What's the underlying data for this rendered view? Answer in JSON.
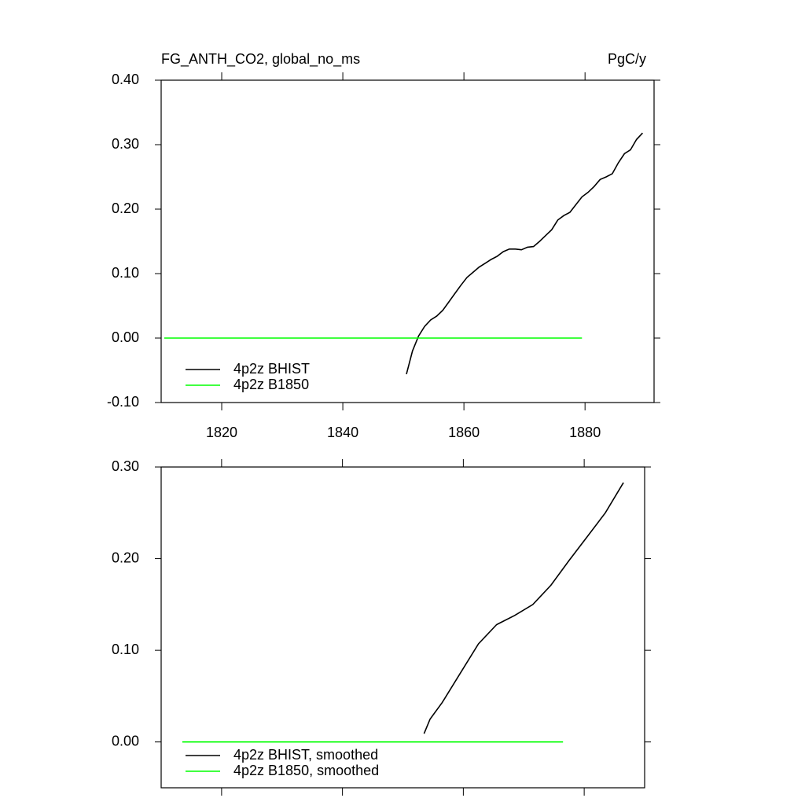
{
  "chart_data": [
    {
      "type": "line",
      "title": "FG_ANTH_CO2, global_no_ms",
      "units": "PgC/y",
      "xlim": [
        1810,
        1891.4
      ],
      "xticks": [
        1820,
        1840,
        1860,
        1880
      ],
      "show_xtick_labels": true,
      "ylim": [
        -0.1,
        0.4
      ],
      "yticks": [
        {
          "value": -0.1,
          "label": "-0.10"
        },
        {
          "value": 0,
          "label": "0.00"
        },
        {
          "value": 0.1,
          "label": "0.10"
        },
        {
          "value": 0.2,
          "label": "0.20"
        },
        {
          "value": 0.3,
          "label": "0.30"
        },
        {
          "value": 0.4,
          "label": "0.40"
        }
      ],
      "series": [
        {
          "name": "4p2z BHIST",
          "color": "#000000",
          "x": [
            1850.5,
            1851.5,
            1852.5,
            1853.5,
            1854.5,
            1855.5,
            1856.5,
            1857.5,
            1858.5,
            1859.5,
            1860.5,
            1861.5,
            1862.5,
            1863.5,
            1864.5,
            1865.5,
            1866.5,
            1867.5,
            1868.5,
            1869.5,
            1870.5,
            1871.5,
            1872.5,
            1873.5,
            1874.5,
            1875.5,
            1876.5,
            1877.5,
            1878.5,
            1879.5,
            1880.5,
            1881.5,
            1882.5,
            1883.5,
            1884.5,
            1885.5,
            1886.5,
            1887.5,
            1888.5,
            1889.5
          ],
          "values": [
            -0.056,
            -0.02,
            0.003,
            0.018,
            0.028,
            0.034,
            0.043,
            0.056,
            0.069,
            0.082,
            0.094,
            0.102,
            0.11,
            0.116,
            0.122,
            0.127,
            0.134,
            0.138,
            0.138,
            0.137,
            0.141,
            0.142,
            0.15,
            0.159,
            0.168,
            0.183,
            0.19,
            0.195,
            0.207,
            0.219,
            0.226,
            0.235,
            0.246,
            0.25,
            0.255,
            0.272,
            0.286,
            0.292,
            0.308,
            0.318
          ]
        },
        {
          "name": "4p2z B1850",
          "color": "#00ff00",
          "x": [
            1810.5,
            1879.5
          ],
          "values": [
            0,
            0
          ]
        }
      ]
    },
    {
      "type": "line",
      "xlim": [
        1810,
        1890
      ],
      "xticks": [
        1820,
        1840,
        1860,
        1880
      ],
      "show_xtick_labels": false,
      "ylim": [
        -0.05,
        0.3
      ],
      "yticks": [
        {
          "value": 0,
          "label": "0.00"
        },
        {
          "value": 0.1,
          "label": "0.10"
        },
        {
          "value": 0.2,
          "label": "0.20"
        },
        {
          "value": 0.3,
          "label": "0.30"
        }
      ],
      "series": [
        {
          "name": "4p2z BHIST, smoothed",
          "color": "#000000",
          "x": [
            1853.5,
            1854.5,
            1856.5,
            1859.5,
            1862.5,
            1865.5,
            1868.5,
            1871.5,
            1874.5,
            1877.5,
            1880.5,
            1883.5,
            1886.5
          ],
          "values": [
            0.009,
            0.025,
            0.043,
            0.075,
            0.107,
            0.128,
            0.138,
            0.15,
            0.171,
            0.198,
            0.224,
            0.25,
            0.283
          ]
        },
        {
          "name": "4p2z B1850, smoothed",
          "color": "#00ff00",
          "x": [
            1813.5,
            1876.5
          ],
          "values": [
            0,
            0
          ]
        }
      ]
    }
  ]
}
